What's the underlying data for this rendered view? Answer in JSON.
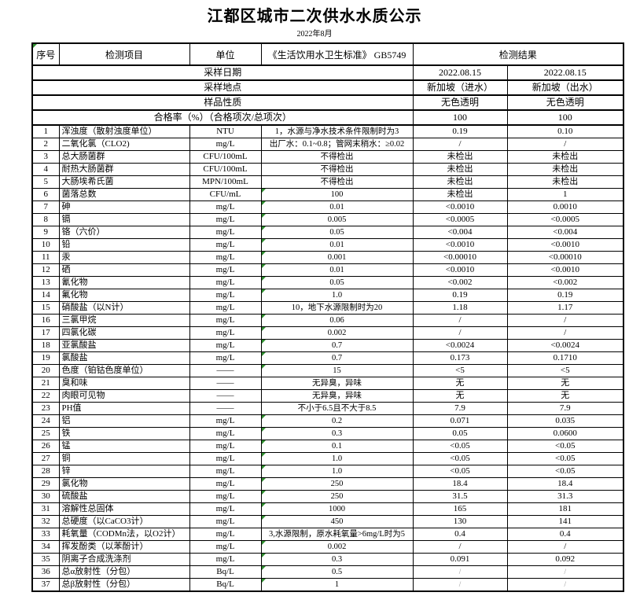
{
  "page": {
    "title": "江都区城市二次供水水质公示",
    "subtitle": "2022年8月"
  },
  "colors": {
    "flag_green": "#2f8f2f",
    "faint_slash": "#8f8f8f"
  },
  "info_rows": [
    {
      "label": "采样日期",
      "inlet": "2022.08.15",
      "outlet": "2022.08.15"
    },
    {
      "label": "采样地点",
      "inlet": "新加坡（进水）",
      "outlet": "新加坡（出水）"
    },
    {
      "label": "样品性质",
      "inlet": "无色透明",
      "outlet": "无色透明"
    },
    {
      "label": "合格率（%）（合格项次/总项次）",
      "inlet": "100",
      "outlet": "100"
    }
  ],
  "table": {
    "headers": {
      "no": "序号",
      "item": "检测项目",
      "unit": "单位",
      "standard": "《生活饮用水卫生标准》 GB5749",
      "result": "检测结果"
    },
    "rows": [
      {
        "no": "1",
        "item": "浑浊度（散射浊度单位）",
        "unit": "NTU",
        "standard": "1，水源与净水技术条件限制时为3",
        "r1": "0.19",
        "r2": "0.10",
        "flag": false,
        "faint": false
      },
      {
        "no": "2",
        "item": "二氧化氯（CLO2)",
        "unit": "mg/L",
        "standard": "出厂水：0.1~0.8；管网末稍水：≥0.02",
        "r1": "/",
        "r2": "/",
        "flag": false,
        "faint": false
      },
      {
        "no": "3",
        "item": "总大肠菌群",
        "unit": "CFU/100mL",
        "standard": "不得检出",
        "r1": "未检出",
        "r2": "未检出",
        "flag": false,
        "faint": false
      },
      {
        "no": "4",
        "item": "耐热大肠菌群",
        "unit": "CFU/100mL",
        "standard": "不得检出",
        "r1": "未检出",
        "r2": "未检出",
        "flag": false,
        "faint": false
      },
      {
        "no": "5",
        "item": "大肠埃希氏菌",
        "unit": "MPN/100mL",
        "standard": "不得检出",
        "r1": "未检出",
        "r2": "未检出",
        "flag": false,
        "faint": false
      },
      {
        "no": "6",
        "item": "菌落总数",
        "unit": "CFU/mL",
        "standard": "100",
        "r1": "未检出",
        "r2": "1",
        "flag": true,
        "faint": false
      },
      {
        "no": "7",
        "item": "砷",
        "unit": "mg/L",
        "standard": "0.01",
        "r1": "<0.0010",
        "r2": "0.0010",
        "flag": true,
        "faint": false
      },
      {
        "no": "8",
        "item": "镉",
        "unit": "mg/L",
        "standard": "0.005",
        "r1": "<0.0005",
        "r2": "<0.0005",
        "flag": true,
        "faint": false
      },
      {
        "no": "9",
        "item": "铬（六价）",
        "unit": "mg/L",
        "standard": "0.05",
        "r1": "<0.004",
        "r2": "<0.004",
        "flag": true,
        "faint": false
      },
      {
        "no": "10",
        "item": "铅",
        "unit": "mg/L",
        "standard": "0.01",
        "r1": "<0.0010",
        "r2": "<0.0010",
        "flag": true,
        "faint": false
      },
      {
        "no": "11",
        "item": "汞",
        "unit": "mg/L",
        "standard": "0.001",
        "r1": "<0.00010",
        "r2": "<0.00010",
        "flag": true,
        "faint": false
      },
      {
        "no": "12",
        "item": "硒",
        "unit": "mg/L",
        "standard": "0.01",
        "r1": "<0.0010",
        "r2": "<0.0010",
        "flag": true,
        "faint": false
      },
      {
        "no": "13",
        "item": "氰化物",
        "unit": "mg/L",
        "standard": "0.05",
        "r1": "<0.002",
        "r2": "<0.002",
        "flag": true,
        "faint": false
      },
      {
        "no": "14",
        "item": "氟化物",
        "unit": "mg/L",
        "standard": "1.0",
        "r1": "0.19",
        "r2": "0.19",
        "flag": true,
        "faint": false
      },
      {
        "no": "15",
        "item": "硝酸盐（以N计）",
        "unit": "mg/L",
        "standard": "10，地下水源限制时为20",
        "r1": "1.18",
        "r2": "1.17",
        "flag": false,
        "faint": false
      },
      {
        "no": "16",
        "item": "三氯甲烷",
        "unit": "mg/L",
        "standard": "0.06",
        "r1": "/",
        "r2": "/",
        "flag": true,
        "faint": false
      },
      {
        "no": "17",
        "item": "四氯化碳",
        "unit": "mg/L",
        "standard": "0.002",
        "r1": "/",
        "r2": "/",
        "flag": true,
        "faint": false
      },
      {
        "no": "18",
        "item": "亚氯酸盐",
        "unit": "mg/L",
        "standard": "0.7",
        "r1": "<0.0024",
        "r2": "<0.0024",
        "flag": true,
        "faint": false
      },
      {
        "no": "19",
        "item": "氯酸盐",
        "unit": "mg/L",
        "standard": "0.7",
        "r1": "0.173",
        "r2": "0.1710",
        "flag": true,
        "faint": false
      },
      {
        "no": "20",
        "item": "色度（铂钴色度单位）",
        "unit": "——",
        "standard": "15",
        "r1": "<5",
        "r2": "<5",
        "flag": true,
        "faint": false
      },
      {
        "no": "21",
        "item": "臭和味",
        "unit": "——",
        "standard": "无异臭，异味",
        "r1": "无",
        "r2": "无",
        "flag": false,
        "faint": false
      },
      {
        "no": "22",
        "item": "肉眼可见物",
        "unit": "——",
        "standard": "无异臭，异味",
        "r1": "无",
        "r2": "无",
        "flag": false,
        "faint": false
      },
      {
        "no": "23",
        "item": "PH值",
        "unit": "——",
        "standard": "不小于6.5且不大于8.5",
        "r1": "7.9",
        "r2": "7.9",
        "flag": false,
        "faint": false
      },
      {
        "no": "24",
        "item": "铝",
        "unit": "mg/L",
        "standard": "0.2",
        "r1": "0.071",
        "r2": "0.035",
        "flag": true,
        "faint": false
      },
      {
        "no": "25",
        "item": "铁",
        "unit": "mg/L",
        "standard": "0.3",
        "r1": "0.05",
        "r2": "0.0600",
        "flag": true,
        "faint": false
      },
      {
        "no": "26",
        "item": "锰",
        "unit": "mg/L",
        "standard": "0.1",
        "r1": "<0.05",
        "r2": "<0.05",
        "flag": true,
        "faint": false
      },
      {
        "no": "27",
        "item": "铜",
        "unit": "mg/L",
        "standard": "1.0",
        "r1": "<0.05",
        "r2": "<0.05",
        "flag": true,
        "faint": false
      },
      {
        "no": "28",
        "item": "锌",
        "unit": "mg/L",
        "standard": "1.0",
        "r1": "<0.05",
        "r2": "<0.05",
        "flag": true,
        "faint": false
      },
      {
        "no": "29",
        "item": "氯化物",
        "unit": "mg/L",
        "standard": "250",
        "r1": "18.4",
        "r2": "18.4",
        "flag": true,
        "faint": false
      },
      {
        "no": "30",
        "item": "硫酸盐",
        "unit": "mg/L",
        "standard": "250",
        "r1": "31.5",
        "r2": "31.3",
        "flag": true,
        "faint": false
      },
      {
        "no": "31",
        "item": "溶解性总固体",
        "unit": "mg/L",
        "standard": "1000",
        "r1": "165",
        "r2": "181",
        "flag": true,
        "faint": false
      },
      {
        "no": "32",
        "item": "总硬度（以CaCO3计）",
        "unit": "mg/L",
        "standard": "450",
        "r1": "130",
        "r2": "141",
        "flag": true,
        "faint": false
      },
      {
        "no": "33",
        "item": "耗氧量（CODMn法，以O2计）",
        "unit": "mg/L",
        "standard": "3,水源限制，原水耗氧量>6mg/L时为5",
        "r1": "0.4",
        "r2": "0.4",
        "flag": false,
        "faint": false
      },
      {
        "no": "34",
        "item": "挥发酚类（以苯酚计）",
        "unit": "mg/L",
        "standard": "0.002",
        "r1": "/",
        "r2": "/",
        "flag": true,
        "faint": false
      },
      {
        "no": "35",
        "item": "阴离子合成洗涤剂",
        "unit": "mg/L",
        "standard": "0.3",
        "r1": "0.091",
        "r2": "0.092",
        "flag": true,
        "faint": false
      },
      {
        "no": "36",
        "item": "总α放射性（分包）",
        "unit": "Bq/L",
        "standard": "0.5",
        "r1": "/",
        "r2": "/",
        "flag": true,
        "faint": true
      },
      {
        "no": "37",
        "item": "总β放射性（分包）",
        "unit": "Bq/L",
        "standard": "1",
        "r1": "/",
        "r2": "/",
        "flag": true,
        "faint": true
      }
    ]
  }
}
